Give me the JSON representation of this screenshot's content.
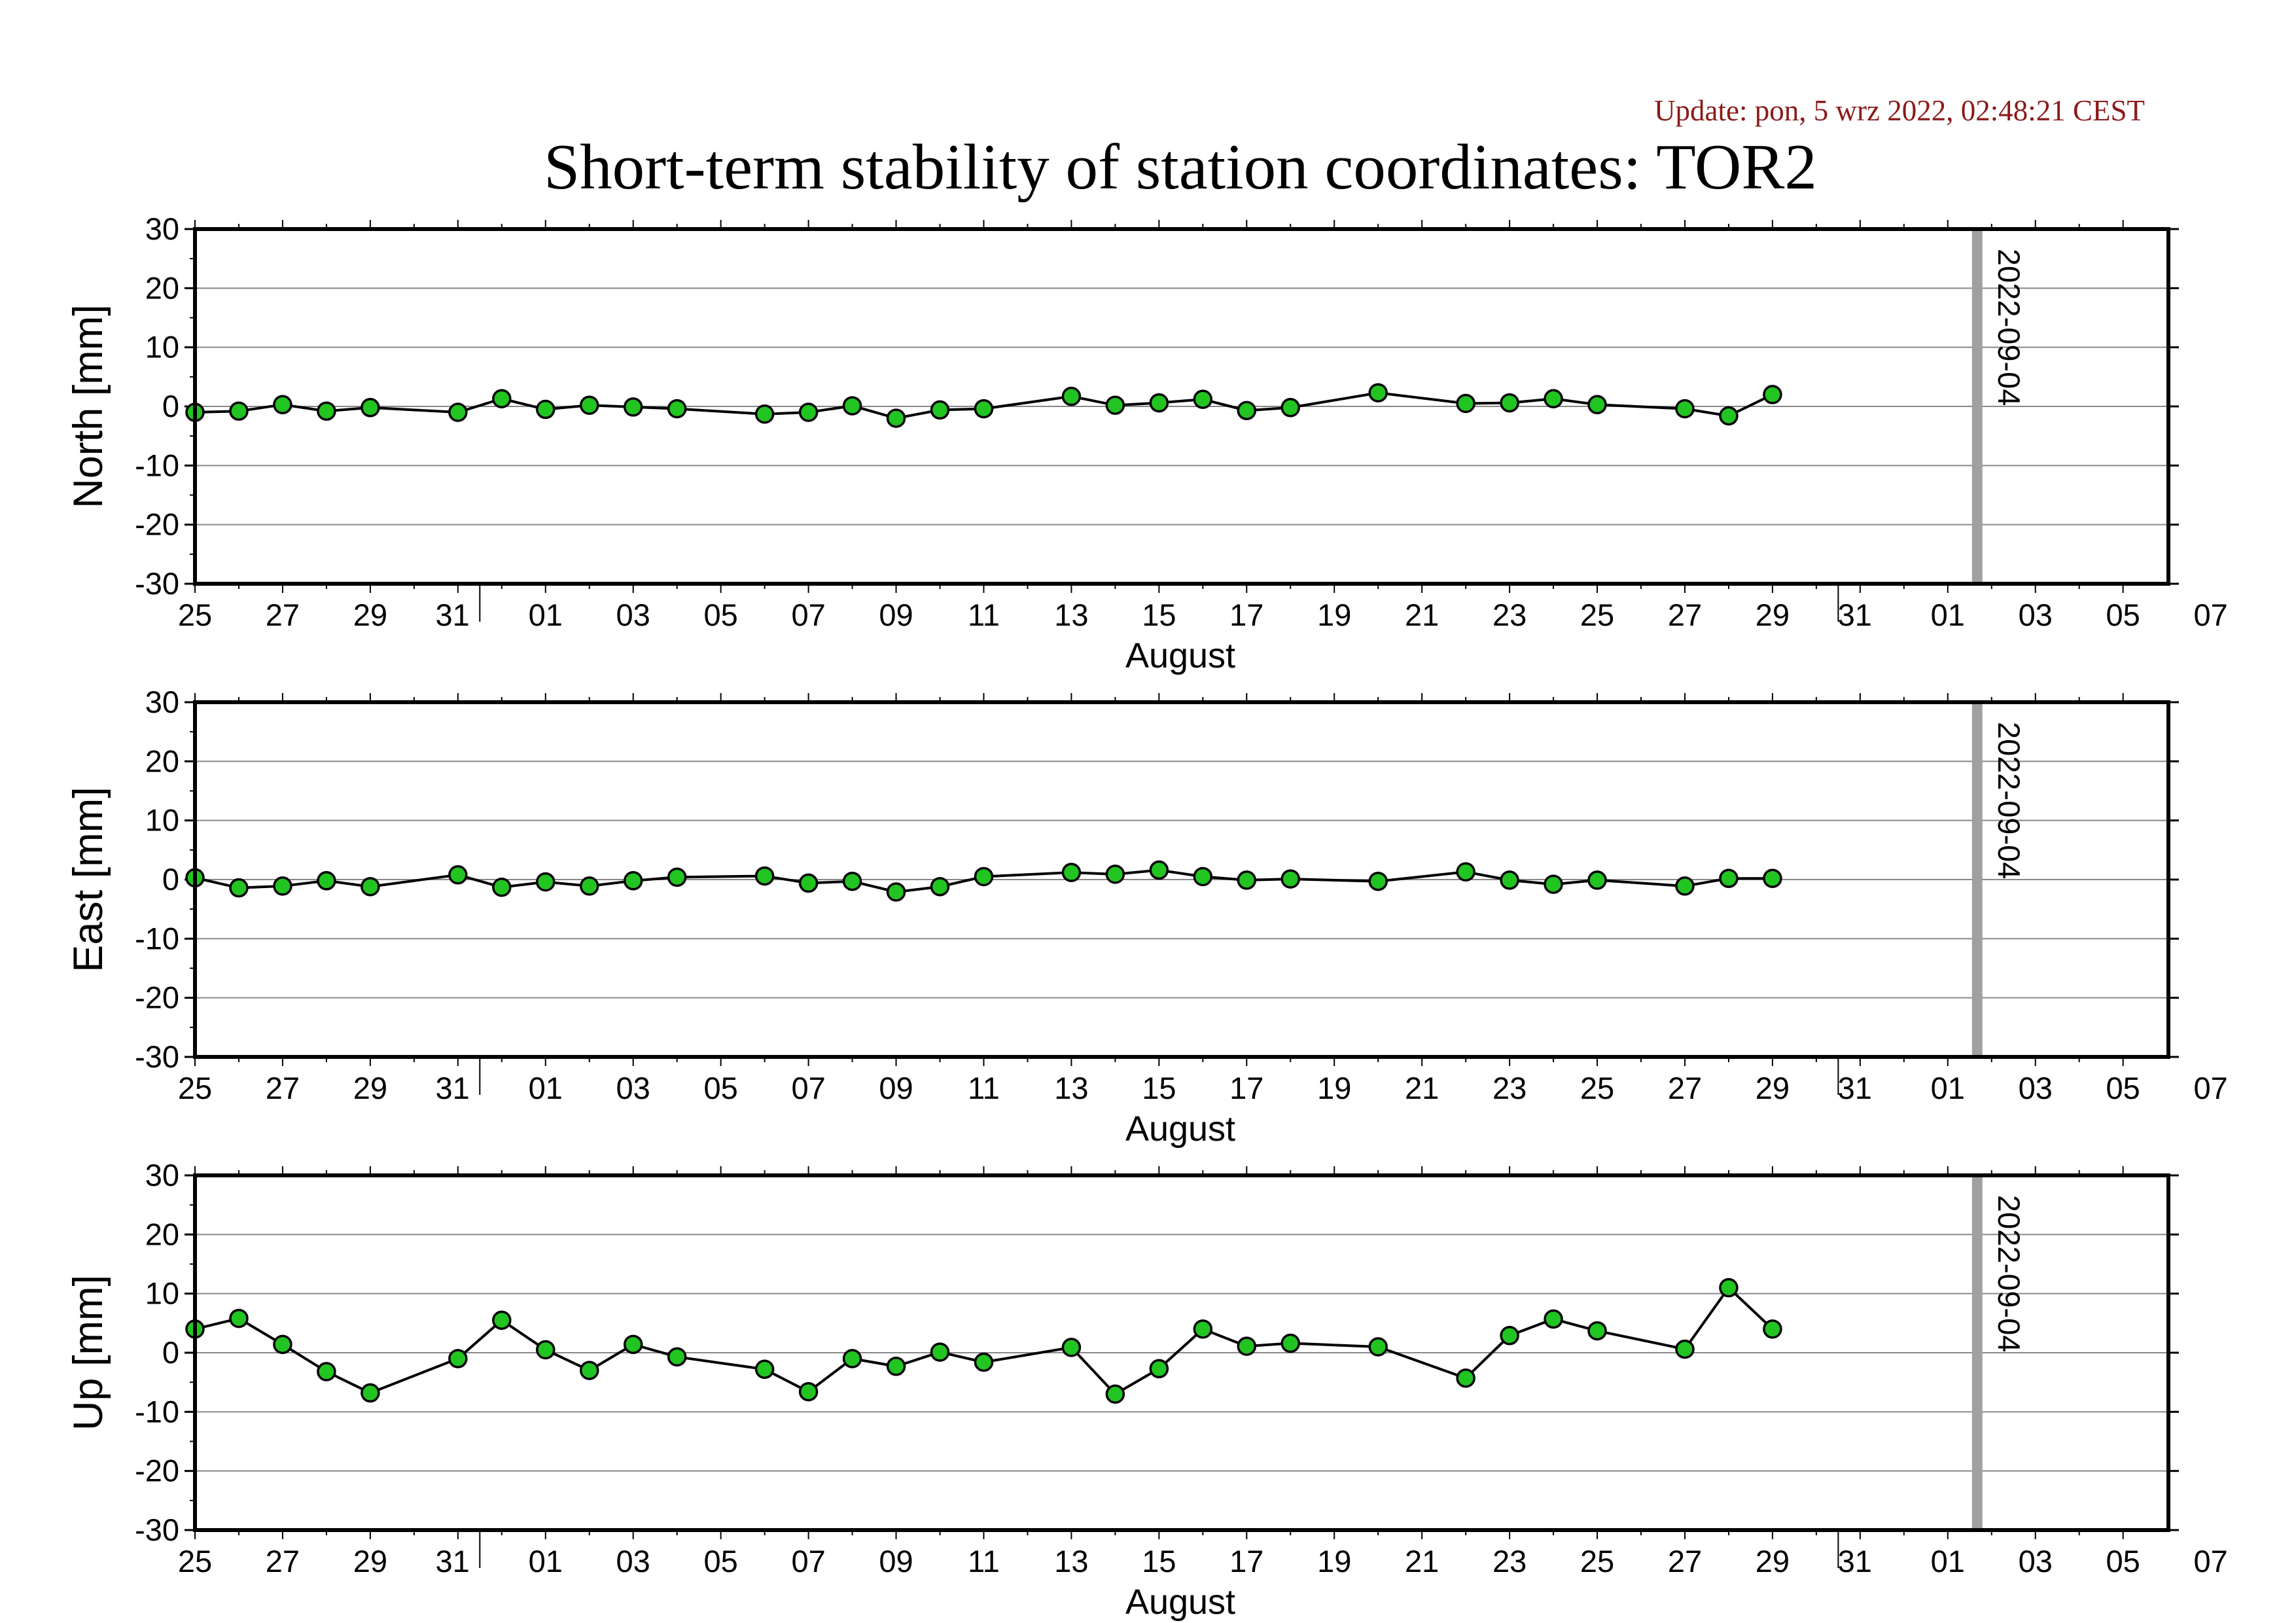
{
  "header": {
    "update": "Update: pon, 5 wrz 2022, 02:48:21 CEST",
    "title": "Short-term stability of station coordinates: TOR2"
  },
  "colors": {
    "point_fill": "#22c422",
    "line": "#000000",
    "grid": "#888888",
    "marker_line": "#a0a0a0",
    "update_text": "#8b1a1a"
  },
  "chart_data": [
    {
      "type": "line",
      "ylabel": "North [mm]",
      "xlabel": "August",
      "ylim": [
        -30,
        30
      ],
      "yticks": [
        30,
        20,
        10,
        0,
        -10,
        -20,
        -30
      ],
      "xlim": [
        "2022-07-25",
        "2022-09-07"
      ],
      "xtick_labels": [
        "25",
        "27",
        "29",
        "31",
        "01",
        "03",
        "05",
        "07",
        "09",
        "11",
        "13",
        "15",
        "17",
        "19",
        "21",
        "23",
        "25",
        "27",
        "29",
        "31",
        "01",
        "03",
        "05",
        "07"
      ],
      "grid": "horizontal",
      "marker": {
        "date": "2022-09-04",
        "label": "2022-09-04"
      },
      "series": [
        {
          "x": [
            "2022-07-25",
            "2022-07-26",
            "2022-07-27",
            "2022-07-28",
            "2022-07-29",
            "2022-07-31",
            "2022-08-01",
            "2022-08-02",
            "2022-08-03",
            "2022-08-04",
            "2022-08-05",
            "2022-08-07",
            "2022-08-08",
            "2022-08-09",
            "2022-08-10",
            "2022-08-11",
            "2022-08-12",
            "2022-08-14",
            "2022-08-15",
            "2022-08-16",
            "2022-08-17",
            "2022-08-18",
            "2022-08-19",
            "2022-08-21",
            "2022-08-23",
            "2022-08-24",
            "2022-08-25",
            "2022-08-26",
            "2022-08-28",
            "2022-08-29",
            "2022-08-30"
          ],
          "values": [
            -1.0,
            -0.8,
            0.3,
            -0.8,
            -0.2,
            -1.0,
            1.3,
            -0.5,
            0.2,
            -0.1,
            -0.4,
            -1.3,
            -1.0,
            0.1,
            -2.0,
            -0.6,
            -0.4,
            1.7,
            0.2,
            0.6,
            1.2,
            -0.7,
            -0.2,
            2.3,
            0.5,
            0.6,
            1.3,
            0.3,
            -0.4,
            -1.6,
            2.0
          ]
        }
      ]
    },
    {
      "type": "line",
      "ylabel": "East [mm]",
      "xlabel": "August",
      "ylim": [
        -30,
        30
      ],
      "yticks": [
        30,
        20,
        10,
        0,
        -10,
        -20,
        -30
      ],
      "xlim": [
        "2022-07-25",
        "2022-09-07"
      ],
      "xtick_labels": [
        "25",
        "27",
        "29",
        "31",
        "01",
        "03",
        "05",
        "07",
        "09",
        "11",
        "13",
        "15",
        "17",
        "19",
        "21",
        "23",
        "25",
        "27",
        "29",
        "31",
        "01",
        "03",
        "05",
        "07"
      ],
      "grid": "horizontal",
      "marker": {
        "date": "2022-09-04",
        "label": "2022-09-04"
      },
      "series": [
        {
          "x": [
            "2022-07-25",
            "2022-07-26",
            "2022-07-27",
            "2022-07-28",
            "2022-07-29",
            "2022-07-31",
            "2022-08-01",
            "2022-08-02",
            "2022-08-03",
            "2022-08-04",
            "2022-08-05",
            "2022-08-07",
            "2022-08-08",
            "2022-08-09",
            "2022-08-10",
            "2022-08-11",
            "2022-08-12",
            "2022-08-14",
            "2022-08-15",
            "2022-08-16",
            "2022-08-17",
            "2022-08-18",
            "2022-08-19",
            "2022-08-21",
            "2022-08-23",
            "2022-08-24",
            "2022-08-25",
            "2022-08-26",
            "2022-08-28",
            "2022-08-29",
            "2022-08-30"
          ],
          "values": [
            0.3,
            -1.4,
            -1.1,
            -0.2,
            -1.2,
            0.8,
            -1.3,
            -0.4,
            -1.1,
            -0.2,
            0.4,
            0.6,
            -0.6,
            -0.3,
            -2.1,
            -1.2,
            0.5,
            1.2,
            0.9,
            1.6,
            0.5,
            -0.1,
            0.1,
            -0.3,
            1.3,
            -0.1,
            -0.8,
            -0.1,
            -1.1,
            0.2,
            0.2
          ]
        }
      ]
    },
    {
      "type": "line",
      "ylabel": "Up [mm]",
      "xlabel": "August",
      "ylim": [
        -30,
        30
      ],
      "yticks": [
        30,
        20,
        10,
        0,
        -10,
        -20,
        -30
      ],
      "xlim": [
        "2022-07-25",
        "2022-09-07"
      ],
      "xtick_labels": [
        "25",
        "27",
        "29",
        "31",
        "01",
        "03",
        "05",
        "07",
        "09",
        "11",
        "13",
        "15",
        "17",
        "19",
        "21",
        "23",
        "25",
        "27",
        "29",
        "31",
        "01",
        "03",
        "05",
        "07"
      ],
      "grid": "horizontal",
      "marker": {
        "date": "2022-09-04",
        "label": "2022-09-04"
      },
      "series": [
        {
          "x": [
            "2022-07-25",
            "2022-07-26",
            "2022-07-27",
            "2022-07-28",
            "2022-07-29",
            "2022-07-31",
            "2022-08-01",
            "2022-08-02",
            "2022-08-03",
            "2022-08-04",
            "2022-08-05",
            "2022-08-07",
            "2022-08-08",
            "2022-08-09",
            "2022-08-10",
            "2022-08-11",
            "2022-08-12",
            "2022-08-14",
            "2022-08-15",
            "2022-08-16",
            "2022-08-17",
            "2022-08-18",
            "2022-08-19",
            "2022-08-21",
            "2022-08-23",
            "2022-08-24",
            "2022-08-25",
            "2022-08-26",
            "2022-08-28",
            "2022-08-29",
            "2022-08-30"
          ],
          "values": [
            4.0,
            5.8,
            1.4,
            -3.2,
            -6.8,
            -1.0,
            5.5,
            0.5,
            -3.0,
            1.4,
            -0.7,
            -2.8,
            -6.6,
            -1.0,
            -2.3,
            0.1,
            -1.6,
            0.9,
            -7.0,
            -2.7,
            4.0,
            1.1,
            1.6,
            1.0,
            -4.3,
            2.9,
            5.7,
            3.7,
            0.6,
            11.0,
            4.0
          ]
        }
      ]
    }
  ]
}
